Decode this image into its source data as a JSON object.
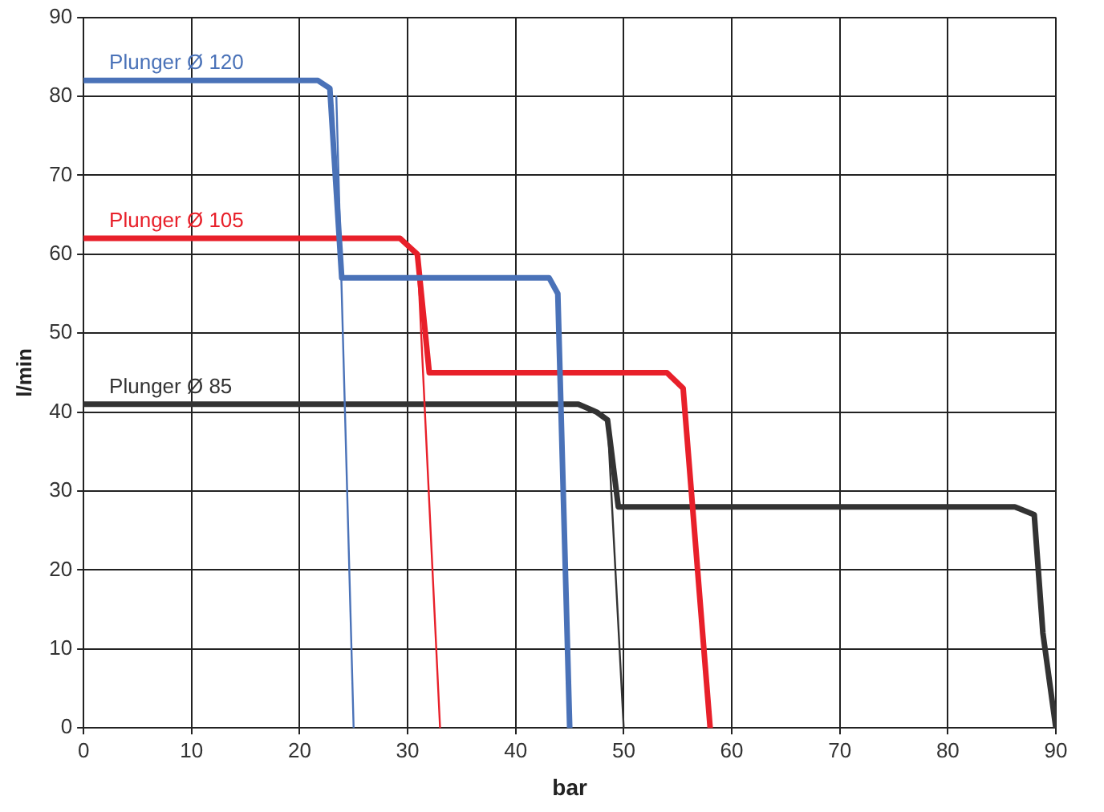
{
  "chart_data": {
    "type": "line",
    "xlabel": "bar",
    "ylabel": "l/min",
    "xlim": [
      0,
      90
    ],
    "xticks": [
      0,
      10,
      20,
      30,
      40,
      50,
      60,
      70,
      80,
      90
    ],
    "ylim": [
      0,
      90
    ],
    "yticks": [
      0,
      10,
      20,
      30,
      40,
      50,
      60,
      70,
      80,
      90
    ],
    "grid": true,
    "legend": false,
    "marker": "none",
    "series": [
      {
        "name": "Plunger Ø 120",
        "color": "#4a72b8",
        "x": [
          0,
          21.7,
          22.8,
          23.9,
          43.1,
          43.9,
          45
        ],
        "values": [
          82,
          82,
          81,
          57,
          57,
          55,
          0
        ]
      },
      {
        "color": "#4a72b8",
        "x": [
          23.4,
          25
        ],
        "values": [
          80,
          0
        ]
      },
      {
        "name": "Plunger Ø 105",
        "color": "#e8202a",
        "x": [
          0,
          29.3,
          30.9,
          32,
          54,
          55.5,
          58
        ],
        "values": [
          62,
          62,
          60,
          45,
          45,
          43,
          0
        ]
      },
      {
        "color": "#e8202a",
        "x": [
          30.9,
          33
        ],
        "values": [
          60,
          0
        ]
      },
      {
        "name": "Plunger Ø 85",
        "color": "#333333",
        "x": [
          0,
          45.8,
          47.5,
          48.5,
          49.5,
          86.2,
          88,
          88.8,
          90
        ],
        "values": [
          41,
          41,
          40,
          39,
          28,
          28,
          27,
          12,
          0
        ]
      },
      {
        "color": "#333333",
        "x": [
          48.5,
          50
        ],
        "values": [
          39,
          0
        ]
      }
    ]
  }
}
